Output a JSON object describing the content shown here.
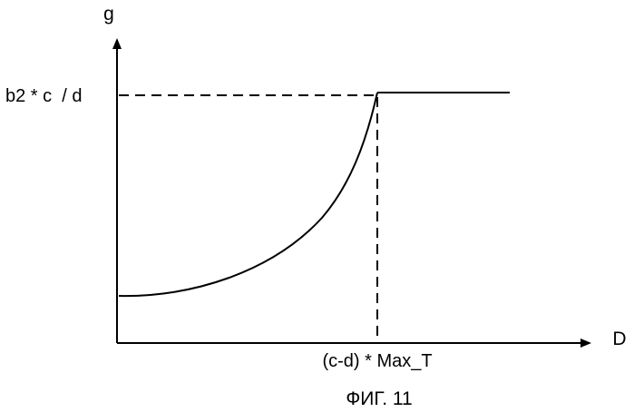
{
  "figure": {
    "caption": "ФИГ. 11",
    "colors": {
      "ink": "#000000",
      "background": "#ffffff"
    }
  },
  "axes": {
    "y_label": "g",
    "x_label": "D"
  },
  "annotations": {
    "y_level_label": "b2 * c  / d",
    "x_threshold_label": "(c-d) * Max_T"
  },
  "curve": {
    "shape": "convex rising curve from a low starting level up to the threshold, then constant (horizontal) at the upper level",
    "guides": "dashed"
  }
}
